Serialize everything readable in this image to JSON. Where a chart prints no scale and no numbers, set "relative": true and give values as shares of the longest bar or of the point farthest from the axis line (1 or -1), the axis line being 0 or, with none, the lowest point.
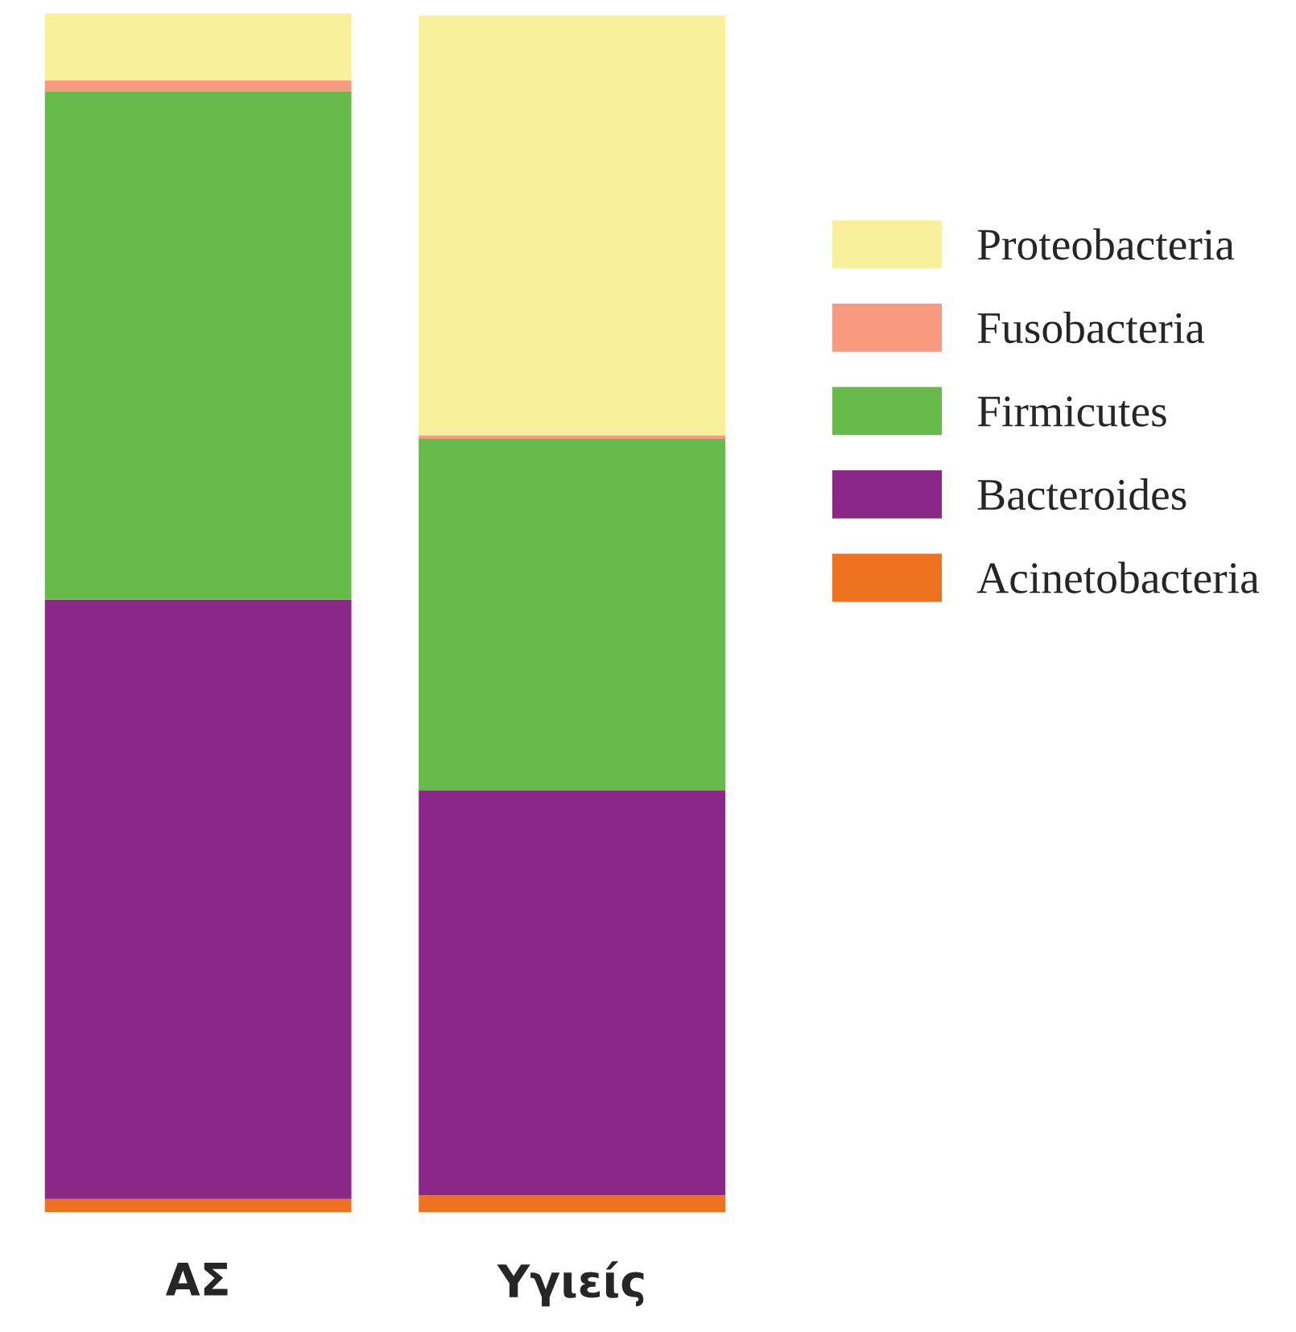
{
  "chart_data": {
    "type": "bar",
    "relative": true,
    "stacked": true,
    "legend": "right",
    "categories": [
      "ΑΣ",
      "Υγιείς"
    ],
    "series": [
      {
        "name": "Acinetobacteria",
        "color": "#ef7220",
        "values": [
          0.011,
          0.014
        ]
      },
      {
        "name": "Bacteroides",
        "color": "#8b2786",
        "values": [
          0.5,
          0.338
        ]
      },
      {
        "name": "Firmicutes",
        "color": "#66bb4a",
        "values": [
          0.424,
          0.293
        ]
      },
      {
        "name": "Fusobacteria",
        "color": "#f79a80",
        "values": [
          0.009,
          0.003
        ]
      },
      {
        "name": "Proteobacteria",
        "color": "#f8f09a",
        "values": [
          0.056,
          0.35
        ]
      }
    ]
  }
}
